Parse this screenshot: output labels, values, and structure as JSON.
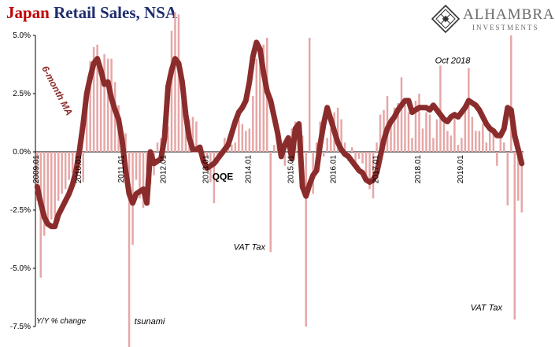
{
  "title_part1": "Japan",
  "title_part2": "Retail Sales, NSA",
  "logo": {
    "brand": "ALHAMBRA",
    "sub": "INVESTMENTS",
    "icon": "diamond-lattice-icon"
  },
  "colors": {
    "bars": "#e6a6a6",
    "ma_line": "#8b2c2c",
    "title_red": "#c00000",
    "title_blue": "#1f2d6e"
  },
  "chart_data": {
    "type": "bar",
    "ylabel": "Y/Y % change",
    "ylim": [
      -7.5,
      5.0
    ],
    "yticks": [
      5.0,
      2.5,
      0.0,
      -2.5,
      -5.0,
      -7.5
    ],
    "ytick_labels": [
      "5.0%",
      "2.5%",
      "0.0%",
      "-2.5%",
      "-5.0%",
      "-7.5%"
    ],
    "x_start": "2009-01",
    "x_tick_labels": [
      {
        "label": "2009.01",
        "month_index": 0
      },
      {
        "label": "2010.01",
        "month_index": 12
      },
      {
        "label": "2011.01",
        "month_index": 24
      },
      {
        "label": "2012.01",
        "month_index": 36
      },
      {
        "label": "2013.01",
        "month_index": 48
      },
      {
        "label": "2014.01",
        "month_index": 60
      },
      {
        "label": "2015.01",
        "month_index": 72
      },
      {
        "label": "2016.01",
        "month_index": 84
      },
      {
        "label": "2017.01",
        "month_index": 96
      },
      {
        "label": "2018.01",
        "month_index": 108
      },
      {
        "label": "2019.01",
        "month_index": 120
      }
    ],
    "series": [
      {
        "name": "Y/Y % change",
        "kind": "bar",
        "values": [
          -2.1,
          -5.4,
          -3.6,
          -3.0,
          -2.9,
          -3.2,
          -2.1,
          -1.8,
          -1.6,
          -1.2,
          -0.9,
          -0.8,
          -0.6,
          -1.3,
          2.0,
          3.9,
          4.5,
          4.6,
          3.4,
          4.2,
          4.0,
          4.0,
          3.0,
          2.0,
          0.6,
          0.8,
          -8.5,
          -4.0,
          -1.2,
          -2.0,
          -2.4,
          -0.8,
          -1.4,
          -1.0,
          0.4,
          0.6,
          0.9,
          1.1,
          5.2,
          6.0,
          5.9,
          2.2,
          1.3,
          1.4,
          1.5,
          1.3,
          0.0,
          0.0,
          -0.2,
          -1.3,
          -2.2,
          -0.5,
          0.0,
          0.6,
          0.2,
          0.3,
          0.4,
          1.4,
          1.2,
          0.9,
          1.0,
          2.4,
          4.0,
          4.5,
          4.6,
          4.9,
          -4.3,
          0.3,
          0.8,
          0.5,
          -0.6,
          0.0,
          1.0,
          1.3,
          1.0,
          0.7,
          -7.5,
          4.9,
          -1.8,
          0.4,
          1.3,
          -0.2,
          0.6,
          1.0,
          1.7,
          1.9,
          1.4,
          0.4,
          -0.4,
          0.2,
          -0.6,
          -0.3,
          -0.5,
          -1.2,
          -1.6,
          -2.0,
          0.4,
          1.6,
          1.8,
          2.4,
          1.4,
          1.9,
          2.1,
          3.2,
          2.0,
          1.7,
          0.6,
          2.2,
          2.5,
          1.0,
          1.7,
          1.6,
          0.6,
          1.4,
          3.7,
          1.5,
          0.9,
          0.7,
          1.7,
          0.3,
          0.6,
          1.9,
          3.6,
          1.5,
          0.9,
          0.9,
          1.2,
          0.4,
          1.1,
          0.9,
          -0.6,
          0.6,
          0.4,
          -2.3,
          5.0,
          -7.2,
          -2.1,
          -2.6
        ]
      },
      {
        "name": "6-month MA",
        "kind": "line",
        "values": [
          -1.5,
          -2.2,
          -2.8,
          -3.1,
          -3.2,
          -3.2,
          -2.7,
          -2.4,
          -2.1,
          -1.8,
          -1.4,
          -0.8,
          0.1,
          1.2,
          2.5,
          3.2,
          3.8,
          4.0,
          3.5,
          2.9,
          3.0,
          2.3,
          1.8,
          1.4,
          0.5,
          -0.8,
          -1.8,
          -2.2,
          -1.8,
          -1.7,
          -1.6,
          -2.2,
          0.0,
          -0.5,
          -0.4,
          -0.3,
          0.6,
          2.8,
          3.5,
          4.0,
          3.8,
          3.0,
          1.6,
          0.6,
          0.1,
          0.1,
          0.2,
          -0.4,
          -0.7,
          -0.6,
          -0.5,
          -0.3,
          -0.1,
          0.1,
          0.3,
          0.8,
          1.3,
          1.7,
          1.9,
          2.2,
          3.0,
          4.1,
          4.7,
          4.4,
          3.4,
          2.6,
          2.2,
          1.5,
          0.8,
          -0.2,
          0.3,
          0.6,
          -0.3,
          1.0,
          1.2,
          -1.5,
          -1.9,
          -1.4,
          -1.0,
          -0.8,
          0.3,
          1.2,
          1.9,
          1.4,
          0.9,
          0.4,
          0.1,
          -0.1,
          -0.2,
          -0.4,
          -0.6,
          -0.8,
          -0.9,
          -1.2,
          -1.3,
          -1.2,
          -0.9,
          -0.2,
          0.5,
          1.0,
          1.3,
          1.5,
          1.8,
          2.0,
          2.2,
          2.2,
          1.7,
          1.8,
          1.9,
          1.9,
          1.9,
          1.8,
          2.0,
          1.8,
          1.6,
          1.4,
          1.3,
          1.5,
          1.6,
          1.5,
          1.7,
          1.9,
          2.2,
          2.1,
          2.0,
          1.8,
          1.5,
          1.2,
          1.0,
          0.9,
          0.7,
          0.7,
          1.0,
          1.9,
          1.8,
          0.7,
          0.1,
          -0.5
        ]
      }
    ],
    "annotations": [
      {
        "text": "6-month MA",
        "style": "ma",
        "month_index": 24,
        "value": 3.6
      },
      {
        "text": "Oct 2018",
        "style": "italic",
        "month_index": 113,
        "value": 3.8
      },
      {
        "text": "QQE",
        "style": "bold",
        "month_index": 50,
        "value": -1.2
      },
      {
        "text": "VAT Tax",
        "style": "italic",
        "month_index": 56,
        "value": -4.2
      },
      {
        "text": "tsunami",
        "style": "italic",
        "month_index": 28,
        "value": -7.4
      },
      {
        "text": "VAT Tax",
        "style": "italic",
        "month_index": 123,
        "value": -6.8
      }
    ]
  }
}
